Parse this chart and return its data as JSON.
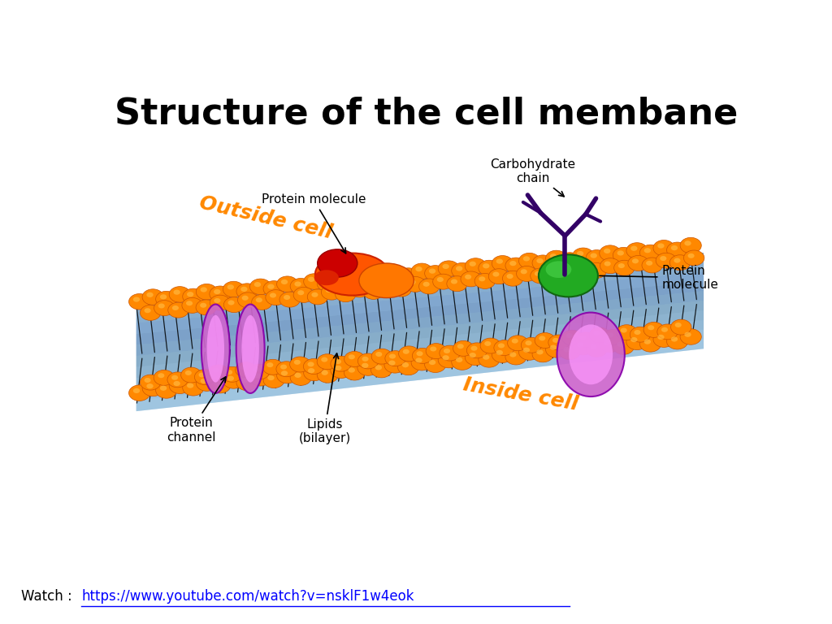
{
  "title": "Structure of the cell membane",
  "title_fontsize": 32,
  "title_fontweight": "bold",
  "bg_color": "#ffffff",
  "watch_text": "Watch : ",
  "watch_url": "https://www.youtube.com/watch?v=nsklF1w4eok",
  "labels": {
    "outside_cell": "Outside cell",
    "inside_cell": "Inside cell",
    "protein_molecule_top": "Protein molecule",
    "carbohydrate_chain": "Carbohydrate\nchain",
    "protein_molecule_right": "Protein\nmolecule",
    "protein_channel": "Protein\nchannel",
    "lipids_bilayer": "Lipids\n(bilayer)"
  },
  "orange_color": "#FF8800",
  "orange_highlight": "#FFBB44",
  "orange_edge": "#CC5500",
  "membrane_bg": "#89B8D4",
  "carb_color": "#330066",
  "protein_channel_face": "#CC66CC",
  "protein_channel_edge": "#8800AA",
  "protein_channel_inner": "#FF99FF",
  "green_protein": "#22AA22",
  "green_protein_edge": "#116611",
  "outside_cell_color": "#FF8800",
  "inside_cell_color": "#FF8800",
  "label_fontsize": 11,
  "outside_inside_fontsize": 18
}
